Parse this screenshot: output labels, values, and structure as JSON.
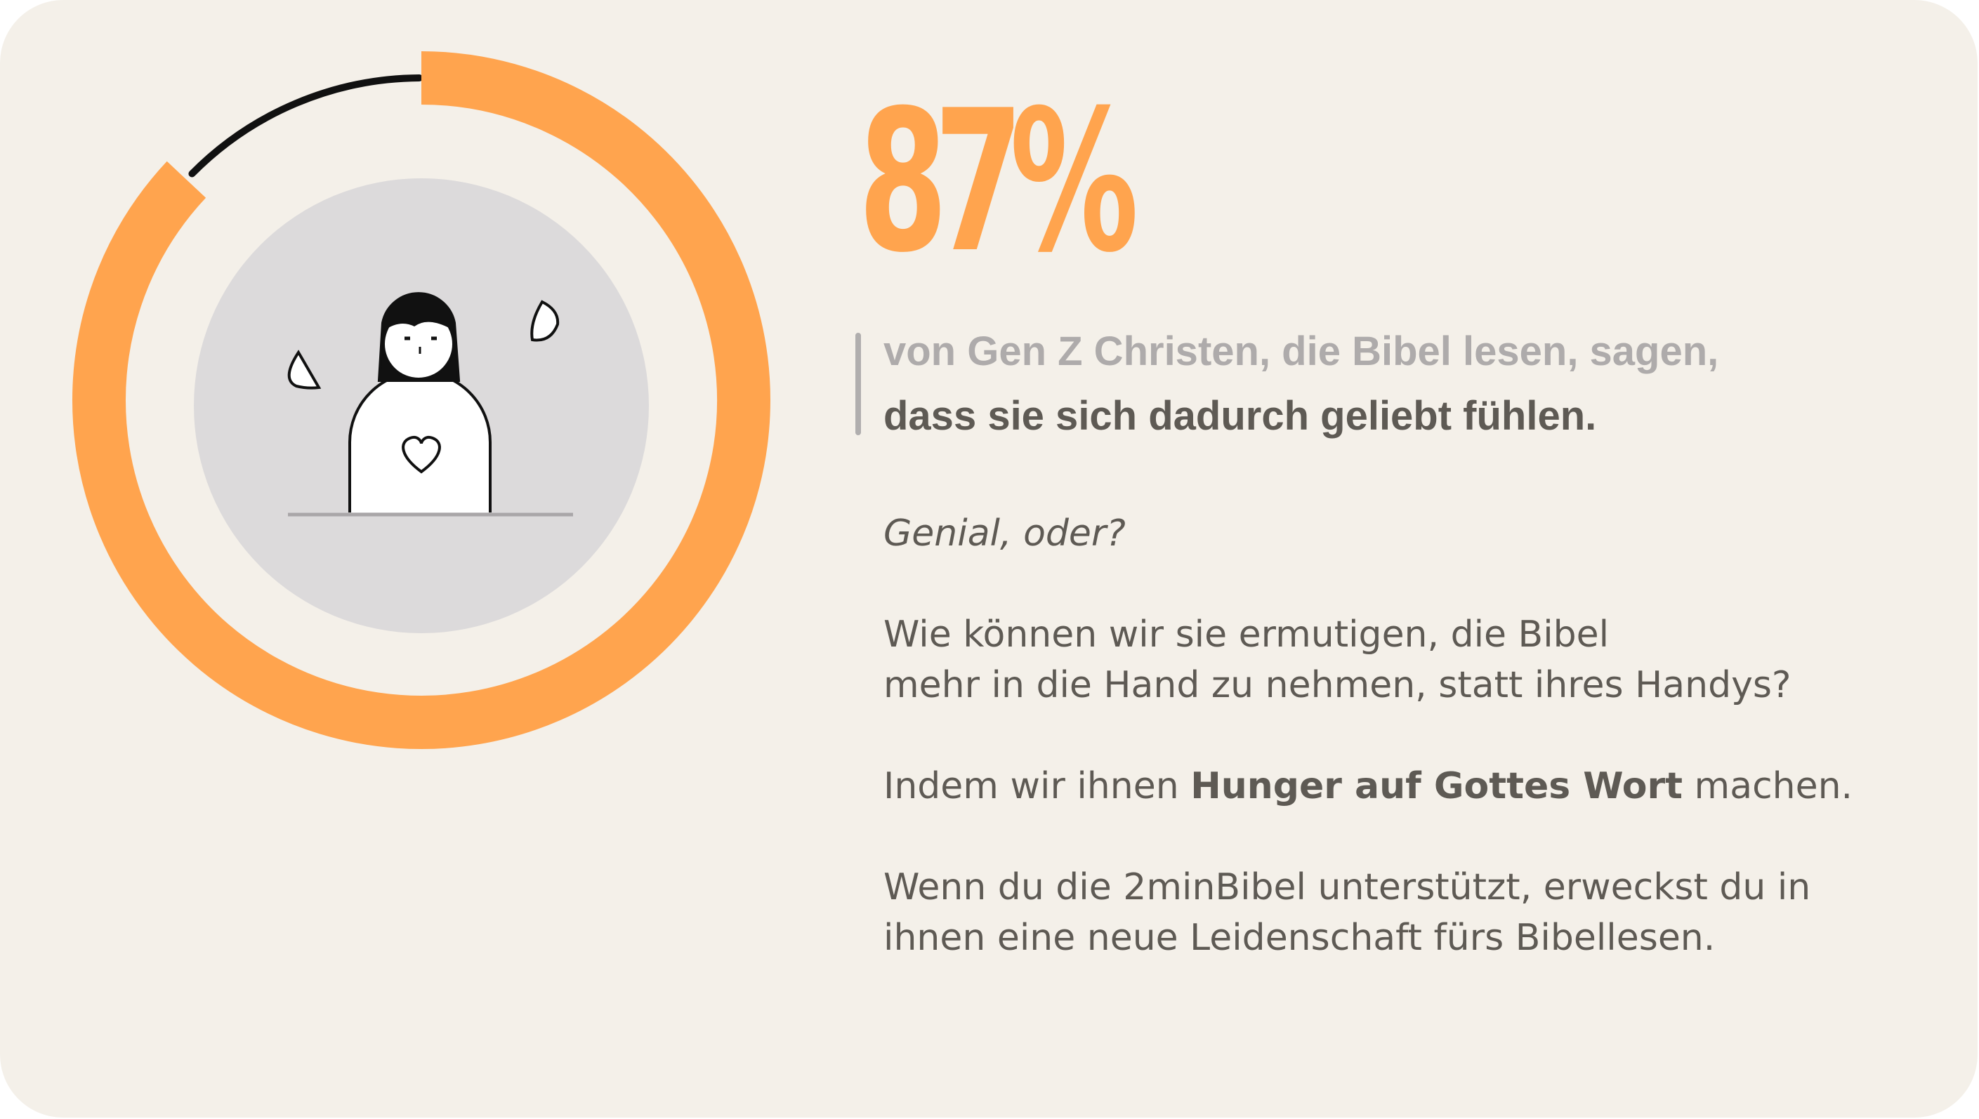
{
  "chart_data": {
    "type": "pie",
    "variant": "donut",
    "value": 87,
    "remainder": 13,
    "value_label": "87%"
  },
  "colors": {
    "background": "#f4f0e9",
    "accent": "#ffa44e",
    "remainder": "#111111",
    "inner_circle": "#dcdadb",
    "text_light": "#aeabab",
    "text_dark": "#5e5a54"
  },
  "illustration": {
    "subject": "person-with-heart",
    "icons": [
      "person-icon",
      "heart-icon",
      "leaf-icon"
    ]
  },
  "headline": {
    "line1": "von Gen Z Christen, die Bibel lesen, sagen,",
    "line2": "dass sie sich dadurch geliebt fühlen."
  },
  "body": {
    "exclaim": "Genial, oder?",
    "question_line1": "Wie können wir sie ermutigen, die Bibel",
    "question_line2": "mehr in die Hand zu nehmen, statt ihres Handys?",
    "answer_pre": "Indem wir ihnen ",
    "answer_bold": "Hunger auf Gottes Wort",
    "answer_post": " machen.",
    "cta_line1": "Wenn du die 2minBibel unterstützt, erweckst du in",
    "cta_line2": "ihnen eine neue Leidenschaft fürs Bibellesen."
  }
}
